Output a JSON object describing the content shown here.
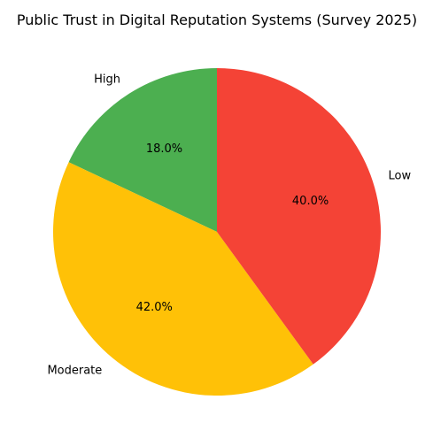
{
  "chart_data": {
    "type": "pie",
    "title": "Public Trust in Digital Reputation Systems (Survey 2025)",
    "start_angle_deg": 90,
    "direction": "counterclockwise",
    "slices": [
      {
        "label": "High",
        "value": 18.0,
        "pct_label": "18.0%",
        "color": "#4caf50"
      },
      {
        "label": "Moderate",
        "value": 42.0,
        "pct_label": "42.0%",
        "color": "#ffc107"
      },
      {
        "label": "Low",
        "value": 40.0,
        "pct_label": "40.0%",
        "color": "#f44336"
      }
    ]
  }
}
